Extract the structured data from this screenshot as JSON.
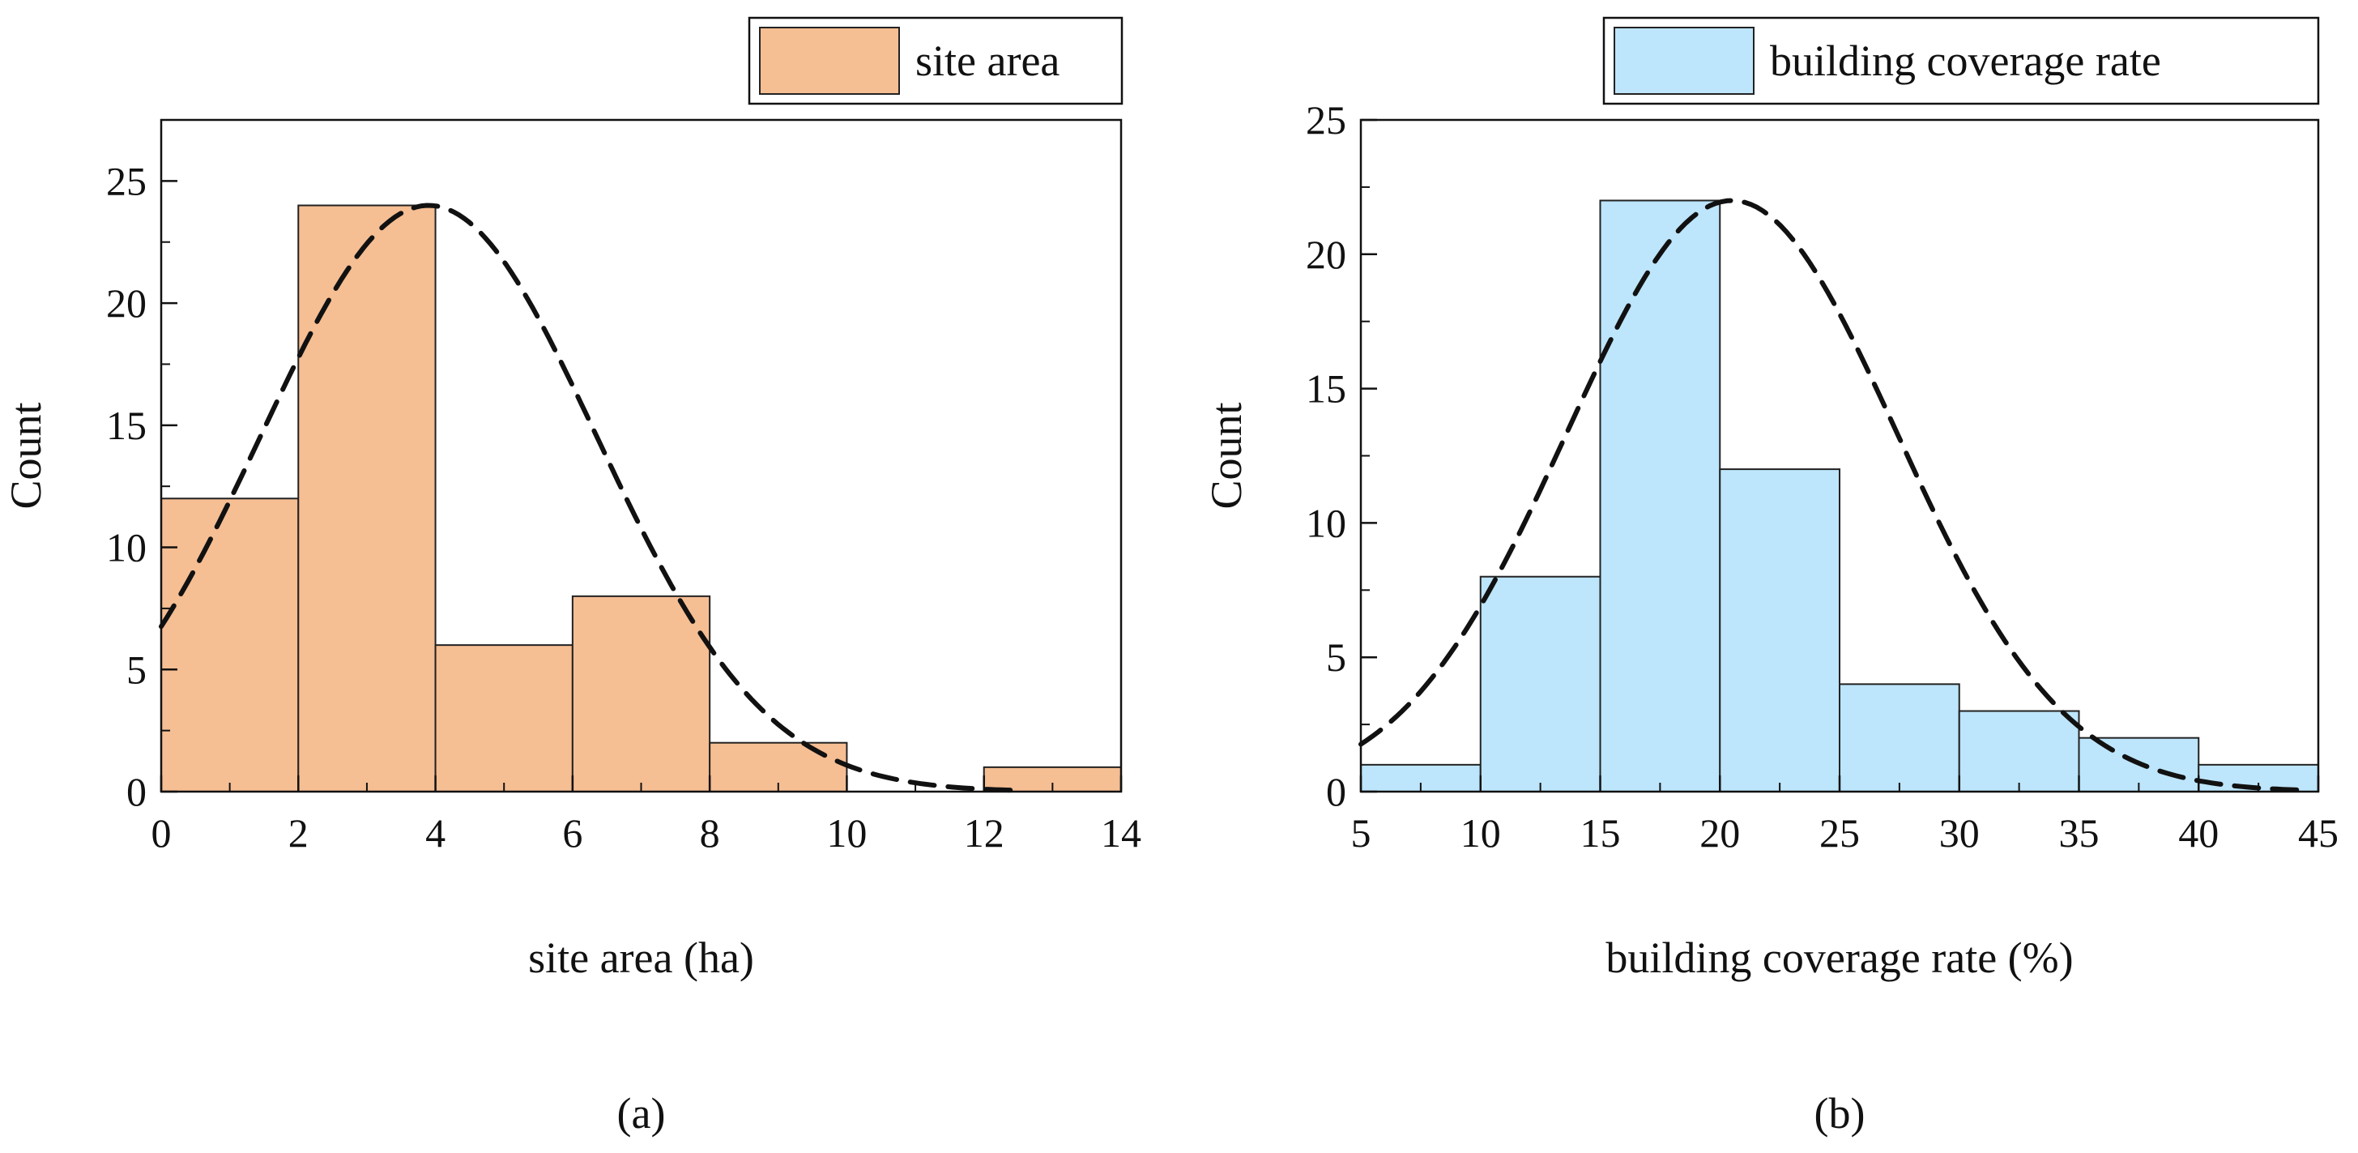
{
  "chart_data": [
    {
      "type": "bar",
      "panel_label": "(a)",
      "title": "",
      "xlabel": "site area (ha)",
      "ylabel": "Count",
      "xlim": [
        0,
        14
      ],
      "ylim": [
        0,
        27.5
      ],
      "xticks": [
        0,
        2,
        4,
        6,
        8,
        10,
        12,
        14
      ],
      "yticks": [
        0,
        5,
        10,
        15,
        20,
        25
      ],
      "bins": [
        {
          "x0": 0,
          "x1": 2,
          "count": 12
        },
        {
          "x0": 2,
          "x1": 4,
          "count": 24
        },
        {
          "x0": 4,
          "x1": 6,
          "count": 6
        },
        {
          "x0": 6,
          "x1": 8,
          "count": 8
        },
        {
          "x0": 8,
          "x1": 10,
          "count": 2
        },
        {
          "x0": 10,
          "x1": 12,
          "count": 0
        },
        {
          "x0": 12,
          "x1": 14,
          "count": 1
        }
      ],
      "fill_color": "#F5BE93",
      "edge_color": "#222222",
      "legend": {
        "label": "site area",
        "position": "top-right"
      },
      "fit_curve": {
        "style": "dashed",
        "peak_x": 3.9,
        "peak_y": 24.0,
        "sigma": 2.45,
        "x_range": [
          0,
          12.4
        ]
      },
      "grid": false
    },
    {
      "type": "bar",
      "panel_label": "(b)",
      "title": "",
      "xlabel": "building coverage rate (%)",
      "ylabel": "Count",
      "xlim": [
        5,
        45
      ],
      "ylim": [
        0,
        25
      ],
      "xticks": [
        5,
        10,
        15,
        20,
        25,
        30,
        35,
        40,
        45
      ],
      "yticks": [
        0,
        5,
        10,
        15,
        20,
        25
      ],
      "bins": [
        {
          "x0": 5,
          "x1": 10,
          "count": 1
        },
        {
          "x0": 10,
          "x1": 15,
          "count": 8
        },
        {
          "x0": 15,
          "x1": 20,
          "count": 22
        },
        {
          "x0": 20,
          "x1": 25,
          "count": 12
        },
        {
          "x0": 25,
          "x1": 30,
          "count": 4
        },
        {
          "x0": 30,
          "x1": 35,
          "count": 3
        },
        {
          "x0": 35,
          "x1": 40,
          "count": 2
        },
        {
          "x0": 40,
          "x1": 45,
          "count": 1
        }
      ],
      "fill_color": "#BDE5FB",
      "edge_color": "#222222",
      "legend": {
        "label": "building coverage rate",
        "position": "top-right"
      },
      "fit_curve": {
        "style": "dashed",
        "peak_x": 20.5,
        "peak_y": 22.0,
        "sigma": 6.9,
        "x_range": [
          5,
          44.5
        ]
      },
      "grid": false
    }
  ]
}
